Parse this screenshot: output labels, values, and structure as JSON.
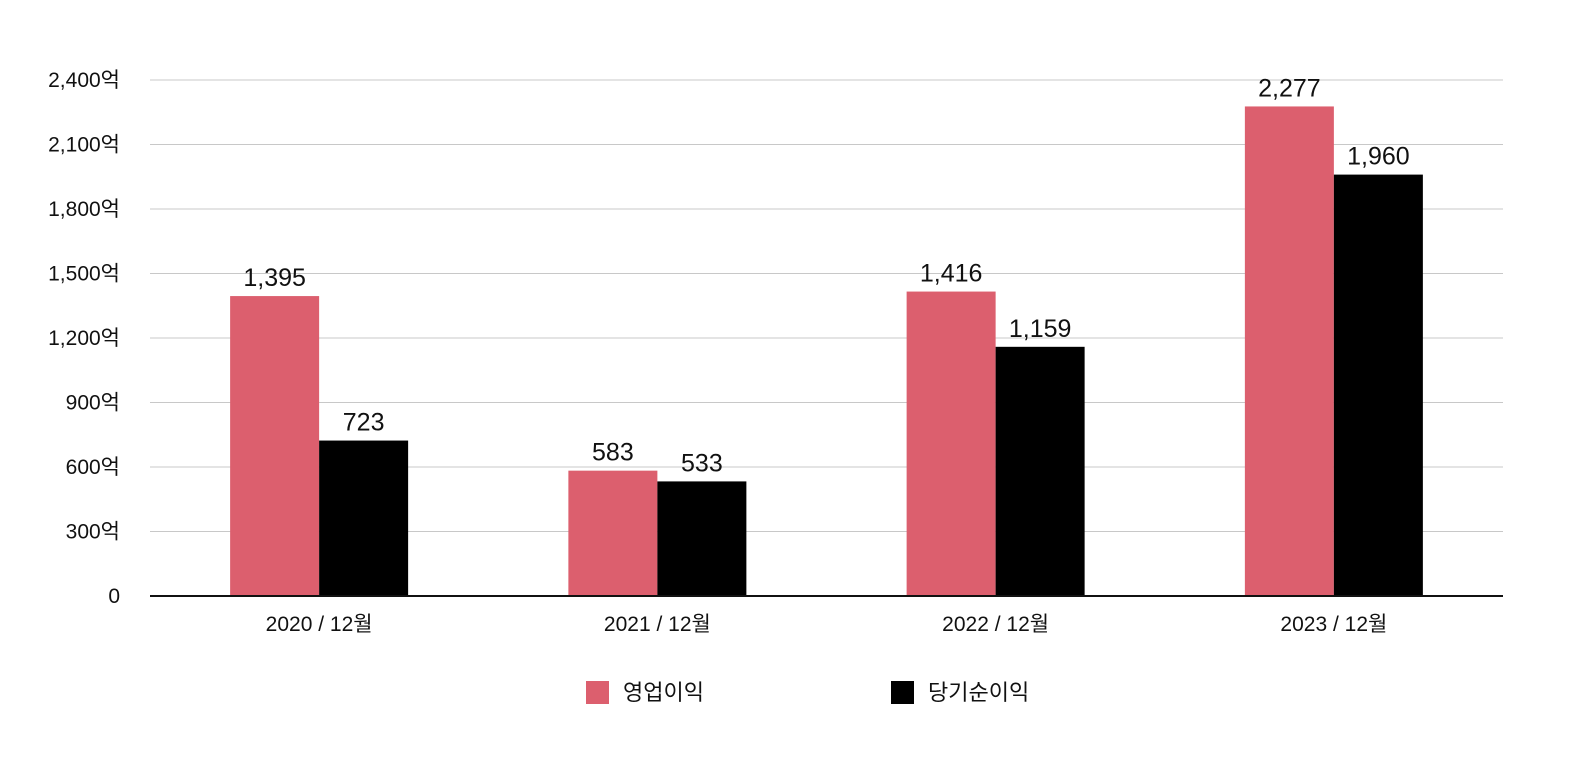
{
  "chart_data": {
    "type": "bar",
    "title": "",
    "xlabel": "",
    "ylabel": "",
    "categories": [
      "2020 / 12월",
      "2021 / 12월",
      "2022 / 12월",
      "2023 / 12월"
    ],
    "series": [
      {
        "name": "영업이익",
        "color": "#dc5f6e",
        "values": [
          1395,
          583,
          1416,
          2277
        ],
        "labels": [
          "1,395",
          "583",
          "1,416",
          "2,277"
        ]
      },
      {
        "name": "당기순이익",
        "color": "#000000",
        "values": [
          723,
          533,
          1159,
          1960
        ],
        "labels": [
          "723",
          "533",
          "1,159",
          "1,960"
        ]
      }
    ],
    "ylim": [
      0,
      2400
    ],
    "yticks": [
      0,
      300,
      600,
      900,
      1200,
      1500,
      1800,
      2100,
      2400
    ],
    "ytick_labels": [
      "0",
      "300억",
      "600억",
      "900억",
      "1,200억",
      "1,500억",
      "1,800억",
      "2,100억",
      "2,400억"
    ],
    "grid": true,
    "legend_position": "bottom-center"
  }
}
